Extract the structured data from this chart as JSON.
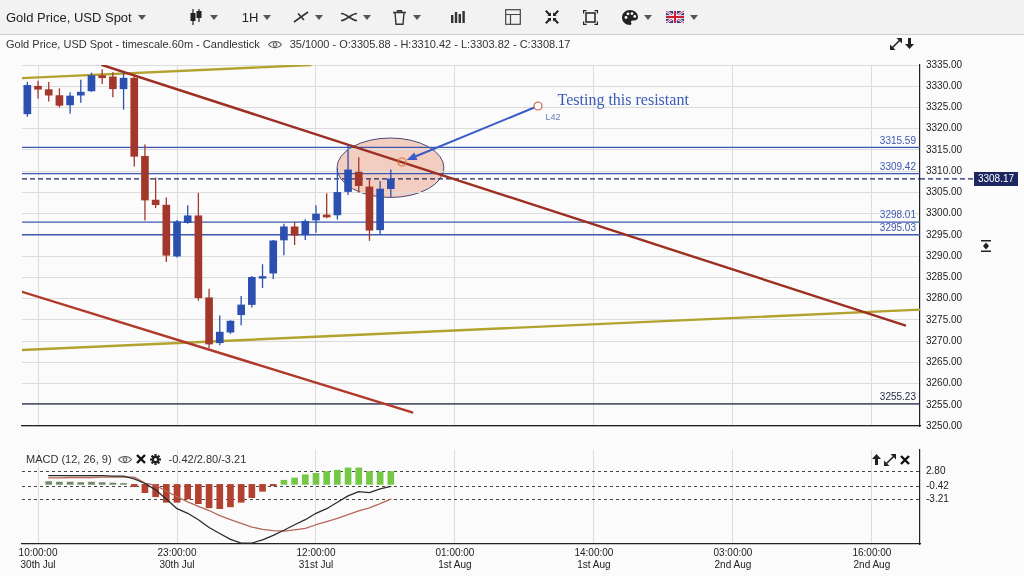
{
  "chart_data": [
    {
      "type": "candlestick",
      "title": "Gold Price, USD Spot",
      "subtitle": "Gold Price, USD Spot - timescale.60m - Candlestick",
      "annotations": [
        "1H",
        "35/1000 - O:3305.88 - H:3310.42 - L:3303.82 - C:3308.17",
        "Testing this resistant",
        "L42"
      ],
      "x": [
        "--07-30T09:00",
        "--07-30T10:00",
        "--07-30T11:00",
        "--07-30T12:00",
        "--07-30T13:00",
        "--07-30T14:00",
        "--07-30T15:00",
        "--07-30T16:00",
        "--07-30T17:00",
        "--07-30T18:00",
        "--07-30T19:00",
        "--07-30T20:00",
        "--07-30T21:00",
        "--07-30T22:00",
        "--07-30T23:00",
        "--07-31T00:00",
        "--07-31T01:00",
        "--07-31T02:00",
        "--07-31T03:00",
        "--07-31T04:00",
        "--07-31T05:00",
        "--07-31T06:00",
        "--07-31T07:00",
        "--07-31T08:00",
        "--07-31T09:00",
        "--07-31T10:00",
        "--07-31T11:00",
        "--07-31T12:00",
        "--07-31T13:00",
        "--07-31T14:00",
        "--07-31T15:00",
        "--07-31T16:00",
        "--07-31T17:00",
        "--07-31T18:00",
        "--07-31T19:00"
      ],
      "ohlc": [
        [
          3323.5,
          3331.0,
          3322.8,
          3330.2
        ],
        [
          3330.0,
          3331.3,
          3327.1,
          3329.3
        ],
        [
          3329.2,
          3331.0,
          3326.4,
          3327.9
        ],
        [
          3327.8,
          3329.5,
          3325.0,
          3325.5
        ],
        [
          3325.6,
          3328.6,
          3323.5,
          3327.7
        ],
        [
          3327.9,
          3331.5,
          3326.1,
          3328.6
        ],
        [
          3328.9,
          3333.2,
          3328.7,
          3332.5
        ],
        [
          3332.5,
          3334.0,
          3330.5,
          3332.0
        ],
        [
          3332.2,
          3333.3,
          3327.4,
          3329.4
        ],
        [
          3329.4,
          3333.3,
          3324.5,
          3331.9
        ],
        [
          3331.9,
          3332.9,
          3311.1,
          3313.5
        ],
        [
          3313.5,
          3316.3,
          3298.4,
          3303.2
        ],
        [
          3303.2,
          3308.5,
          3301.3,
          3302.1
        ],
        [
          3302.0,
          3303.8,
          3288.6,
          3290.2
        ],
        [
          3290.0,
          3298.5,
          3289.7,
          3298.1
        ],
        [
          3297.9,
          3302.0,
          3297.6,
          3299.5
        ],
        [
          3299.5,
          3304.9,
          3279.5,
          3280.2
        ],
        [
          3280.2,
          3282.3,
          3268.3,
          3269.3
        ],
        [
          3269.6,
          3276.0,
          3269.0,
          3272.1
        ],
        [
          3272.1,
          3274.9,
          3271.7,
          3274.7
        ],
        [
          3276.2,
          3280.6,
          3273.7,
          3278.5
        ],
        [
          3278.6,
          3285.3,
          3277.9,
          3285.0
        ],
        [
          3284.8,
          3288.1,
          3282.5,
          3285.2
        ],
        [
          3286.0,
          3293.8,
          3284.6,
          3293.6
        ],
        [
          3293.8,
          3297.6,
          3290.2,
          3296.9
        ],
        [
          3296.9,
          3298.1,
          3292.6,
          3294.9
        ],
        [
          3295.0,
          3298.7,
          3293.8,
          3298.2
        ],
        [
          3298.5,
          3302.0,
          3295.5,
          3299.9
        ],
        [
          3299.7,
          3304.8,
          3298.9,
          3299.2
        ],
        [
          3299.7,
          3310.6,
          3298.6,
          3305.0
        ],
        [
          3305.2,
          3316.3,
          3304.4,
          3310.3
        ],
        [
          3309.8,
          3313.3,
          3304.9,
          3306.6
        ],
        [
          3306.3,
          3308.0,
          3293.6,
          3296.1
        ],
        [
          3296.2,
          3307.7,
          3295.0,
          3305.8
        ],
        [
          3305.88,
          3310.42,
          3303.82,
          3308.17
        ]
      ],
      "colors": [
        "#2b50b0",
        "#a3372b",
        "#a3372b",
        "#a3372b",
        "#2b50b0",
        "#2b50b0",
        "#2b50b0",
        "#a3372b",
        "#a3372b",
        "#2b50b0",
        "#a3372b",
        "#a3372b",
        "#a3372b",
        "#a3372b",
        "#2b50b0",
        "#2b50b0",
        "#a3372b",
        "#a3372b",
        "#2b50b0",
        "#2b50b0",
        "#2b50b0",
        "#2b50b0",
        "#2b50b0",
        "#2b50b0",
        "#2b50b0",
        "#a3372b",
        "#2b50b0",
        "#2b50b0",
        "#a3372b",
        "#2b50b0",
        "#2b50b0",
        "#a3372b",
        "#a3372b",
        "#2b50b0",
        "#2b50b0"
      ],
      "series": [
        {
          "type": "line",
          "x": [
            "--07-30T16:00",
            "--08-02T19:06"
          ],
          "values": [
            3335,
            3273.7
          ],
          "color": "#9c2f22"
        },
        {
          "type": "line",
          "x": [
            "--07-30T08:30",
            "--07-31T21:00"
          ],
          "values": [
            3281.6,
            3253.2
          ],
          "color": "#b0392b"
        },
        {
          "type": "line",
          "x": [
            "--07-30T08:30",
            "--08-02T20:30"
          ],
          "values": [
            3267.9,
            3277.4
          ],
          "color": "#b3a22e"
        },
        {
          "type": "line",
          "x": [
            "--07-30T08:30",
            "--07-31T11:30"
          ],
          "values": [
            3331.9,
            3335
          ],
          "color": "#b3a22e"
        }
      ],
      "ref_lines": [
        {
          "axis": "y",
          "value": 3315.59,
          "label": "3315.59",
          "color": "#3d58b0"
        },
        {
          "axis": "y",
          "value": 3309.42,
          "label": "3309.42",
          "color": "#3d58b0"
        },
        {
          "axis": "y",
          "value": 3298.01,
          "label": "3298.01",
          "color": "#3d58b0"
        },
        {
          "axis": "y",
          "value": 3295.03,
          "label": "3295.03",
          "color": "#3d58b0"
        },
        {
          "axis": "y",
          "value": 3255.23,
          "label": "3255.23",
          "color": "#1f2540"
        },
        {
          "axis": "y",
          "value": 3308.17,
          "label": "3308.17",
          "color": "#1c2660",
          "line_style": "dashed"
        }
      ],
      "xlim": [
        "--07-30T08:30",
        "--08-02T20:30"
      ],
      "xticks": [
        {
          "value": "--07-30T10:00",
          "label": null
        },
        {
          "value": "--07-30T23:00",
          "label": null
        },
        {
          "value": "--07-31T12:00",
          "label": null
        },
        {
          "value": "--08-01T01:00",
          "label": null
        },
        {
          "value": "--08-01T14:00",
          "label": null
        },
        {
          "value": "--08-02T03:00",
          "label": null
        },
        {
          "value": "--08-02T16:00",
          "label": null
        }
      ],
      "ylim": [
        3250,
        3335
      ],
      "yticks": [
        {
          "value": 3250,
          "label": "3250.00"
        },
        {
          "value": 3255,
          "label": "3255.00"
        },
        {
          "value": 3260,
          "label": "3260.00"
        },
        {
          "value": 3265,
          "label": "3265.00"
        },
        {
          "value": 3270,
          "label": "3270.00"
        },
        {
          "value": 3275,
          "label": "3275.00"
        },
        {
          "value": 3280,
          "label": "3280.00"
        },
        {
          "value": 3285,
          "label": "3285.00"
        },
        {
          "value": 3290,
          "label": "3290.00"
        },
        {
          "value": 3295,
          "label": "3295.00"
        },
        {
          "value": 3300,
          "label": "3300.00"
        },
        {
          "value": 3305,
          "label": "3305.00"
        },
        {
          "value": 3310,
          "label": "3310.00"
        },
        {
          "value": 3315,
          "label": "3315.00"
        },
        {
          "value": 3320,
          "label": "3320.00"
        },
        {
          "value": 3325,
          "label": "3325.00"
        },
        {
          "value": 3330,
          "label": "3330.00"
        },
        {
          "value": 3335,
          "label": "3335.00"
        }
      ],
      "grid": true,
      "marker": "none",
      "tick_labels": "y"
    },
    {
      "type": "bar",
      "title": "MACD (12, 26, 9)",
      "subtitle": "-0.42/2.80/-3.21",
      "x": [
        "--07-30T11:00",
        "--07-30T12:00",
        "--07-30T13:00",
        "--07-30T14:00",
        "--07-30T15:00",
        "--07-30T16:00",
        "--07-30T17:00",
        "--07-30T18:00",
        "--07-30T19:00",
        "--07-30T20:00",
        "--07-30T21:00",
        "--07-30T22:00",
        "--07-30T23:00",
        "--07-31T00:00",
        "--07-31T01:00",
        "--07-31T02:00",
        "--07-31T03:00",
        "--07-31T04:00",
        "--07-31T05:00",
        "--07-31T06:00",
        "--07-31T07:00",
        "--07-31T08:00",
        "--07-31T09:00",
        "--07-31T10:00",
        "--07-31T11:00",
        "--07-31T12:00",
        "--07-31T13:00",
        "--07-31T14:00",
        "--07-31T15:00",
        "--07-31T16:00",
        "--07-31T17:00",
        "--07-31T18:00",
        "--07-31T19:00"
      ],
      "series": [
        {
          "color": "#6e8a62",
          "values": [
            0.6,
            0.5,
            0.5,
            0.4,
            0.5,
            0.4,
            0.3,
            0.2,
            null,
            null,
            null,
            null,
            null,
            null,
            null,
            null,
            null,
            null,
            null,
            null,
            null,
            null,
            null,
            null,
            null,
            null,
            null,
            null,
            null,
            null,
            null,
            null,
            null
          ]
        },
        {
          "color": "#b3412f",
          "values": [
            null,
            null,
            null,
            null,
            null,
            null,
            null,
            null,
            -0.5,
            -1.8,
            -2.7,
            -3.9,
            -3.9,
            -3.2,
            -4.2,
            -5.1,
            -5.3,
            -4.9,
            -3.9,
            -2.9,
            -1.5,
            -0.3,
            null,
            null,
            null,
            null,
            null,
            null,
            null,
            null,
            null,
            null,
            null
          ]
        },
        {
          "color": "#74c843",
          "values": [
            null,
            null,
            null,
            null,
            null,
            null,
            null,
            null,
            null,
            null,
            null,
            null,
            null,
            null,
            null,
            null,
            null,
            null,
            null,
            null,
            null,
            null,
            0.9,
            1.4,
            2.1,
            2.4,
            2.8,
            3.1,
            3.6,
            3.6,
            2.8,
            2.7,
            2.8
          ]
        },
        {
          "type": "line",
          "color": "#2b2b2b",
          "values": [
            1.9,
            1.9,
            1.9,
            1.9,
            1.9,
            1.9,
            1.8,
            1.8,
            1.2,
            0.2,
            -1.2,
            -3.2,
            -5.3,
            -6.3,
            -7.7,
            -9.4,
            -10.7,
            -12.0,
            -12.8,
            -12.8,
            -12.1,
            -11.1,
            -10.0,
            -8.8,
            -7.7,
            -6.3,
            -5.3,
            -3.9,
            -2.5,
            -1.6,
            -1.8,
            -1.0,
            -0.42
          ]
        },
        {
          "type": "line",
          "color": "#b5675a",
          "values": [
            1.4,
            1.4,
            1.5,
            1.5,
            1.5,
            1.6,
            1.6,
            1.6,
            1.6,
            0.3,
            -0.2,
            -1.5,
            -2.7,
            -3.8,
            -4.8,
            -5.7,
            -6.8,
            -7.7,
            -8.5,
            -9.3,
            -9.8,
            -10.1,
            -10.2,
            -9.9,
            -9.6,
            -8.8,
            -8.1,
            -7.4,
            -6.6,
            -5.8,
            -5.1,
            -4.2,
            -3.21
          ]
        }
      ],
      "xlim": [
        "--07-30T08:30",
        "--08-02T20:30"
      ],
      "xticks": [
        {
          "value": "--07-30T10:00",
          "label": "10:00:00\n30th Jul"
        },
        {
          "value": "--07-30T23:00",
          "label": "23:00:00\n30th Jul"
        },
        {
          "value": "--07-31T12:00",
          "label": "12:00:00\n31st Jul"
        },
        {
          "value": "--08-01T01:00",
          "label": "01:00:00\n1st Aug"
        },
        {
          "value": "--08-01T14:00",
          "label": "14:00:00\n1st Aug"
        },
        {
          "value": "--08-02T03:00",
          "label": "03:00:00\n2nd Aug"
        },
        {
          "value": "--08-02T16:00",
          "label": "16:00:00\n2nd Aug"
        }
      ],
      "ylim": [
        -13,
        7.5
      ],
      "yticks": [
        {
          "value": 2.8,
          "label": "2.80"
        },
        {
          "value": -0.42,
          "label": "-0.42"
        },
        {
          "value": -3.21,
          "label": "-3.21"
        }
      ],
      "grid": true,
      "marker": "none"
    }
  ]
}
